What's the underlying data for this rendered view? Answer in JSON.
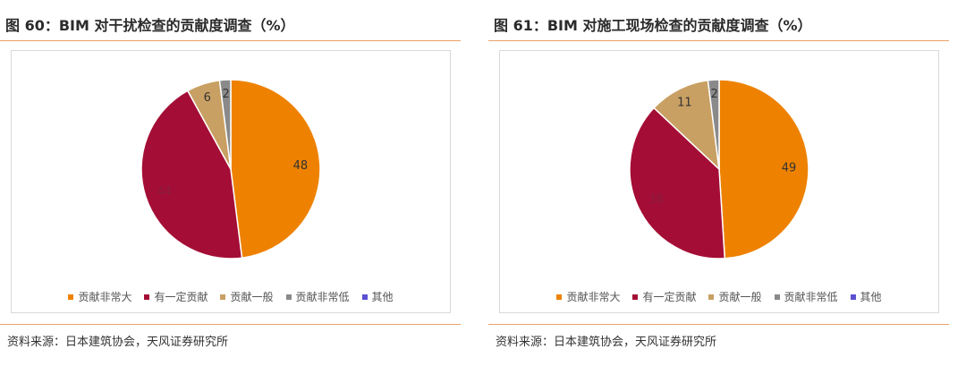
{
  "panels": [
    {
      "title": "图 60：BIM 对干扰检查的贡献度调查（%）",
      "source": "资料来源：日本建筑协会，天风证券研究所",
      "chart_data": {
        "type": "pie",
        "labels": [
          "贡献非常大",
          "有一定贡献",
          "贡献一般",
          "贡献非常低",
          "其他"
        ],
        "values": [
          48,
          44,
          6,
          2,
          0
        ],
        "colors": [
          "#ee8200",
          "#a40d35",
          "#c9a063",
          "#8a8a8a",
          "#5b4fd2"
        ],
        "data_labels": [
          "48",
          "44",
          "6",
          "2",
          ""
        ],
        "legend_position": "bottom"
      }
    },
    {
      "title": "图 61：BIM 对施工现场检查的贡献度调查（%）",
      "source": "资料来源：日本建筑协会，天风证券研究所",
      "chart_data": {
        "type": "pie",
        "labels": [
          "贡献非常大",
          "有一定贡献",
          "贡献一般",
          "贡献非常低",
          "其他"
        ],
        "values": [
          49,
          38,
          11,
          2,
          0
        ],
        "colors": [
          "#ee8200",
          "#a40d35",
          "#c9a063",
          "#8a8a8a",
          "#5b4fd2"
        ],
        "data_labels": [
          "49",
          "38",
          "11",
          "2",
          ""
        ],
        "legend_position": "bottom"
      }
    }
  ]
}
